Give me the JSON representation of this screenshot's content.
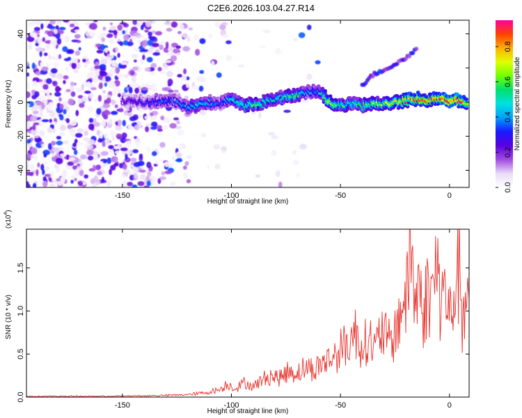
{
  "title": "C2E6.2026.103.04.27.R14",
  "chart_data": [
    {
      "type": "heatmap",
      "xlabel": "Height of straight line (km)",
      "ylabel": "Frequency (Hz)",
      "xlim": [
        -194,
        9
      ],
      "ylim": [
        -50,
        48
      ],
      "xticks": [
        -150,
        -100,
        -50,
        0
      ],
      "xtick_labels": [
        "-150",
        "-100",
        "-50",
        "0"
      ],
      "yticks": [
        -40,
        -20,
        0,
        20,
        40
      ],
      "ytick_labels": [
        "-40",
        "-20",
        "0",
        "20",
        "40"
      ],
      "colorbar": {
        "label": "Normalized spectral amplitude",
        "range": [
          0.0,
          0.95
        ],
        "ticks": [
          0.0,
          0.2,
          0.4,
          0.6,
          0.8
        ],
        "tick_labels": [
          "0.0",
          "0.2",
          "0.4",
          "0.6",
          "0.8"
        ],
        "colormap": [
          "#ffffff",
          "#e9dcf7",
          "#a24ae0",
          "#5a00e0",
          "#1a1aff",
          "#00a0ff",
          "#00e0e0",
          "#00e070",
          "#70ff00",
          "#e0ff00",
          "#ffb000",
          "#ff4000",
          "#ff00a0"
        ]
      },
      "ridge": {
        "x": [
          -150,
          -140,
          -130,
          -125,
          -120,
          -115,
          -110,
          -105,
          -100,
          -95,
          -90,
          -85,
          -80,
          -75,
          -70,
          -65,
          -60,
          -55,
          -50,
          -45,
          -40,
          -35,
          -30,
          -25,
          -20,
          -15,
          -10,
          -5,
          0,
          5,
          8
        ],
        "freq": [
          1,
          0,
          1,
          0,
          -3,
          -2,
          0,
          -1,
          2,
          -2,
          -1,
          0,
          2,
          3,
          4,
          6,
          7,
          0,
          -2,
          -1,
          -2,
          -1,
          -1,
          0,
          1,
          2,
          1,
          2,
          1,
          1,
          0
        ],
        "amplitude": [
          0.25,
          0.3,
          0.4,
          0.35,
          0.45,
          0.5,
          0.45,
          0.35,
          0.5,
          0.55,
          0.6,
          0.55,
          0.5,
          0.55,
          0.6,
          0.4,
          0.45,
          0.75,
          0.6,
          0.55,
          0.6,
          0.65,
          0.7,
          0.75,
          0.8,
          0.85,
          0.85,
          0.9,
          0.95,
          0.9,
          0.8
        ]
      },
      "secondary_branch": {
        "x": [
          -40,
          -35,
          -30,
          -25,
          -20,
          -15
        ],
        "freq": [
          10,
          16,
          19,
          22,
          26,
          31
        ]
      }
    },
    {
      "type": "line",
      "xlabel": "Height of straight line (km)",
      "ylabel": "SNR (10 * v/v)",
      "y_multiplier": "(x10",
      "y_multiplier_exponent": "4",
      "y_multiplier_close": ")",
      "xlim": [
        -194,
        9
      ],
      "ylim": [
        0,
        1.95
      ],
      "xticks": [
        -150,
        -100,
        -50,
        0
      ],
      "xtick_labels": [
        "-150",
        "-100",
        "-50",
        "0"
      ],
      "yticks": [
        0.0,
        0.5,
        1.0,
        1.5
      ],
      "ytick_labels": [
        "0.0",
        "0.5",
        "1.0",
        "1.5"
      ],
      "series": [
        {
          "color": "#e8322c",
          "x": [
            -194,
            -180,
            -160,
            -140,
            -130,
            -120,
            -112,
            -105,
            -102,
            -98,
            -94,
            -90,
            -86,
            -82,
            -78,
            -74,
            -70,
            -66,
            -62,
            -58,
            -54,
            -50,
            -46,
            -43,
            -40,
            -37,
            -34,
            -31,
            -28,
            -25,
            -22,
            -19,
            -18,
            -16,
            -14,
            -12,
            -10,
            -8,
            -6,
            -4,
            -2,
            0,
            2,
            4,
            5,
            6,
            8,
            9
          ],
          "values": [
            0.01,
            0.01,
            0.01,
            0.015,
            0.02,
            0.03,
            0.05,
            0.09,
            0.15,
            0.1,
            0.17,
            0.12,
            0.2,
            0.25,
            0.22,
            0.3,
            0.28,
            0.35,
            0.32,
            0.4,
            0.45,
            0.55,
            0.65,
            0.75,
            0.58,
            0.7,
            0.55,
            0.8,
            0.62,
            0.72,
            1.05,
            1.2,
            1.95,
            1.1,
            1.3,
            0.95,
            1.25,
            1.15,
            1.6,
            1.05,
            1.3,
            0.9,
            1.2,
            1.4,
            1.65,
            0.65,
            1.3,
            1.1
          ]
        }
      ]
    }
  ]
}
